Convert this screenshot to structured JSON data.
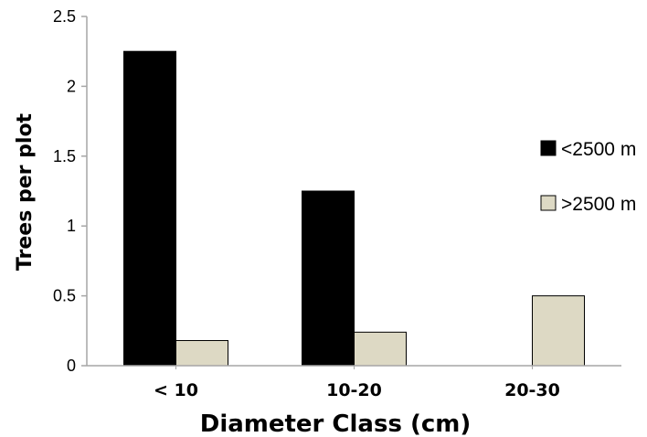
{
  "chart_data": {
    "type": "bar",
    "categories": [
      "< 10",
      "10-20",
      "20-30"
    ],
    "series": [
      {
        "name": "<2500 m",
        "values": [
          2.25,
          1.25,
          0
        ],
        "color": "#000000"
      },
      {
        "name": ">2500 m",
        "values": [
          0.18,
          0.24,
          0.5
        ],
        "color": "#ddd9c4"
      }
    ],
    "title": "",
    "xlabel": "Diameter Class (cm)",
    "ylabel": "Trees per plot",
    "ylim": [
      0,
      2.5
    ],
    "yticks": [
      "0",
      "0.5",
      "1",
      "1.5",
      "2",
      "2.5"
    ],
    "grid": false,
    "legend_position": "right"
  }
}
